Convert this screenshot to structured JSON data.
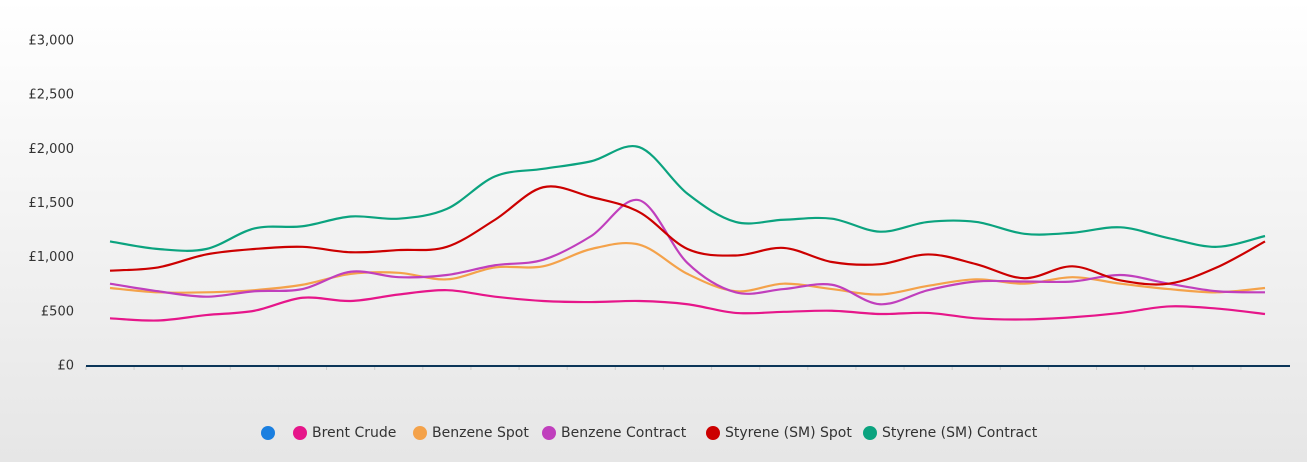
{
  "chart_data": {
    "type": "line",
    "categories": [
      null,
      null,
      null,
      null,
      null,
      null,
      null,
      null,
      null,
      null,
      null,
      null,
      null,
      null,
      null,
      null,
      null,
      null,
      null,
      null,
      null,
      null,
      null,
      null,
      null
    ],
    "ylim": [
      0,
      3000
    ],
    "yticks": [
      {
        "value": 0,
        "label": "£0"
      },
      {
        "value": 500,
        "label": "£500"
      },
      {
        "value": 1000,
        "label": "£1,000"
      },
      {
        "value": 1500,
        "label": "£1,500"
      },
      {
        "value": 2000,
        "label": "£2,000"
      },
      {
        "value": 2500,
        "label": "£2,500"
      },
      {
        "value": 3000,
        "label": "£3,000"
      }
    ],
    "series": [
      {
        "name": "Brent Crude",
        "color": "#e6168a",
        "values": [
          440,
          420,
          470,
          510,
          630,
          600,
          660,
          700,
          640,
          600,
          590,
          600,
          570,
          490,
          500,
          510,
          480,
          490,
          440,
          430,
          450,
          490,
          550,
          530,
          480
        ]
      },
      {
        "name": "Benzene Spot",
        "color": "#f4a24a",
        "values": [
          720,
          680,
          680,
          700,
          750,
          850,
          860,
          800,
          910,
          920,
          1080,
          1120,
          850,
          690,
          760,
          710,
          660,
          740,
          800,
          760,
          820,
          760,
          710,
          680,
          720
        ]
      },
      {
        "name": "Benzene Contract",
        "color": "#c03fbd",
        "values": [
          760,
          690,
          640,
          690,
          710,
          870,
          820,
          840,
          930,
          980,
          1200,
          1530,
          950,
          680,
          710,
          750,
          570,
          700,
          780,
          780,
          780,
          840,
          760,
          690,
          680
        ]
      },
      {
        "name": "Styrene (SM) Spot",
        "color": "#cc0000",
        "values": [
          880,
          910,
          1030,
          1080,
          1100,
          1050,
          1070,
          1100,
          1350,
          1650,
          1560,
          1420,
          1080,
          1020,
          1090,
          960,
          940,
          1030,
          940,
          810,
          920,
          790,
          760,
          910,
          1150
        ]
      },
      {
        "name": "Styrene (SM) Contract",
        "color": "#0ba37f",
        "values": [
          1150,
          1080,
          1080,
          1270,
          1290,
          1380,
          1360,
          1450,
          1750,
          1820,
          1890,
          2020,
          1590,
          1330,
          1350,
          1360,
          1240,
          1330,
          1330,
          1220,
          1230,
          1280,
          1180,
          1100,
          1200
        ]
      }
    ]
  }
}
